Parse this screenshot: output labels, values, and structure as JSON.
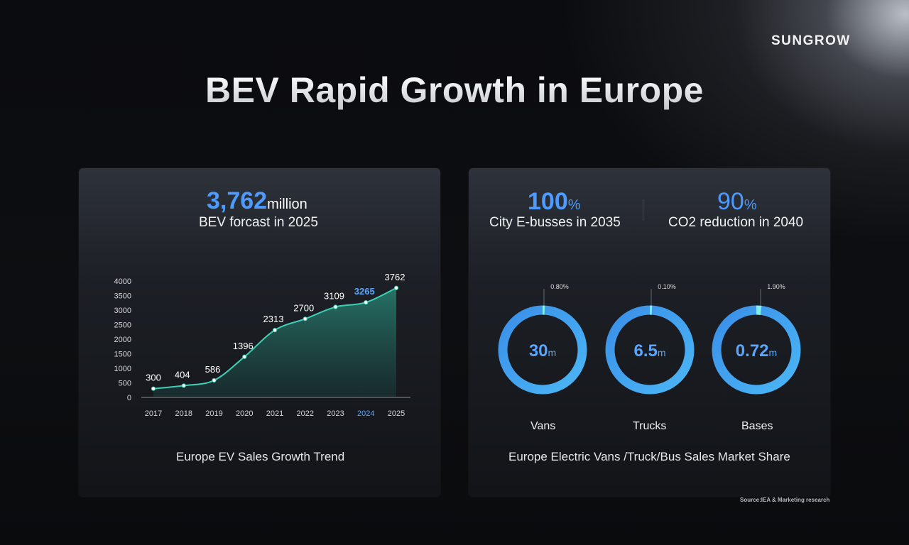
{
  "brand": {
    "logo": "SUNGROW"
  },
  "title": "BEV Rapid Growth in Europe",
  "left_panel": {
    "kpi_value": "3,762",
    "kpi_unit": "million",
    "kpi_label": "BEV  forcast in 2025",
    "caption": "Europe EV Sales Growth Trend"
  },
  "right_panel": {
    "kpi1": {
      "value": "100",
      "unit": "%",
      "label": "City E-busses in 2035"
    },
    "kpi2": {
      "value": "90",
      "unit": "%",
      "label": "CO2 reduction in 2040"
    },
    "caption": "Europe Electric Vans /Truck/Bus Sales Market Share"
  },
  "source": "Source:IEA & Marketing research",
  "colors": {
    "accent_blue": "#4d9bff",
    "line_teal": "#3fd1b8",
    "ring_blue": "#3c9cf0",
    "ring_highlight": "#7ef0e6"
  },
  "chart_data": [
    {
      "type": "area",
      "title": "",
      "xlabel": "",
      "ylabel": "",
      "categories": [
        "2017",
        "2018",
        "2019",
        "2020",
        "2021",
        "2022",
        "2023",
        "2024",
        "2025"
      ],
      "values": [
        300,
        404,
        586,
        1396,
        2313,
        2700,
        3109,
        3265,
        3762
      ],
      "data_labels": [
        "300",
        "404",
        "586",
        "1396",
        "2313",
        "2700",
        "3109",
        "3265",
        "3762"
      ],
      "highlight_category": "2024",
      "yticks": [
        "0",
        "500",
        "1000",
        "1500",
        "2000",
        "2500",
        "3000",
        "3500",
        "4000"
      ],
      "ylim": [
        0,
        4000
      ],
      "grid": false
    },
    {
      "type": "pie",
      "title": "",
      "rings": [
        {
          "name": "Vans",
          "center_value": "30",
          "center_unit": "m",
          "share_label": "0.80%",
          "share": 0.8
        },
        {
          "name": "Trucks",
          "center_value": "6.5",
          "center_unit": "m",
          "share_label": "0.10%",
          "share": 0.1
        },
        {
          "name": "Bases",
          "center_value": "0.72",
          "center_unit": "m",
          "share_label": "1.90%",
          "share": 1.9
        }
      ]
    }
  ]
}
